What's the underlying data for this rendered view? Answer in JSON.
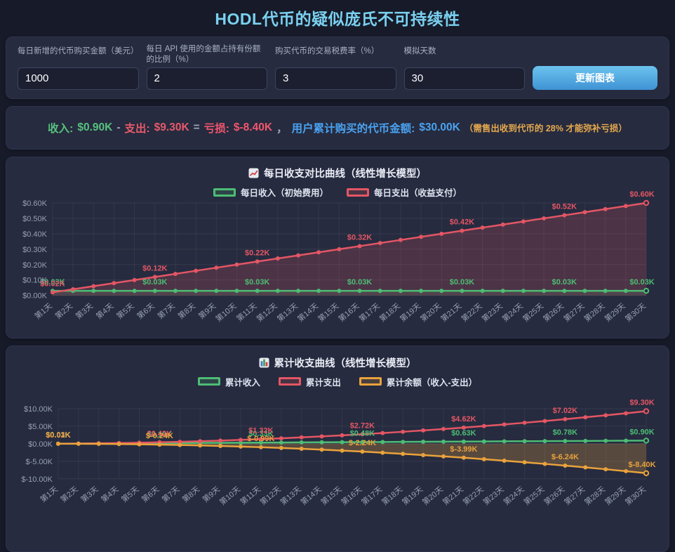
{
  "page": {
    "title": "HODL代币的疑似庞氏不可持续性"
  },
  "controls": {
    "fields": [
      {
        "label": "每日新增的代币购买金额（美元）",
        "value": "1000"
      },
      {
        "label": "每日 API 使用的金额占持有份额的比例（%）",
        "value": "2"
      },
      {
        "label": "购买代币的交易税费率（%）",
        "value": "3"
      },
      {
        "label": "模拟天数",
        "value": "30"
      }
    ],
    "update_button": "更新图表"
  },
  "summary": {
    "income_label": "收入:",
    "income_value": "$0.90K",
    "minus": "-",
    "expense_label": "支出:",
    "expense_value": "$9.30K",
    "equals": "=",
    "loss_label": "亏损:",
    "loss_value": "$-8.40K",
    "comma": "，",
    "total_label": "用户累计购买的代币金额:",
    "total_value": "$30.00K",
    "note": "（需售出收到代币的 28% 才能弥补亏损）",
    "colors": {
      "income": "#57c27d",
      "expense": "#e8596a",
      "loss": "#f2566d",
      "total": "#4aa2f0",
      "note": "#e6a94e"
    }
  },
  "chart_data": [
    {
      "type": "line",
      "title": "每日收支对比曲线（线性增长模型）",
      "icon": "line-chart-icon",
      "grid": true,
      "legend_position": "top",
      "ylim": [
        0,
        0.6
      ],
      "y_ticks": {
        "values": [
          0.6,
          0.5,
          0.4,
          0.3,
          0.2,
          0.1,
          0
        ],
        "labels": [
          "$0.60K",
          "$0.50K",
          "$0.40K",
          "$0.30K",
          "$0.20K",
          "$0.10K",
          "$0.00K"
        ]
      },
      "categories": [
        "第1天",
        "第2天",
        "第3天",
        "第4天",
        "第5天",
        "第6天",
        "第7天",
        "第8天",
        "第9天",
        "第10天",
        "第11天",
        "第12天",
        "第13天",
        "第14天",
        "第15天",
        "第16天",
        "第17天",
        "第18天",
        "第19天",
        "第20天",
        "第21天",
        "第22天",
        "第23天",
        "第24天",
        "第25天",
        "第26天",
        "第27天",
        "第28天",
        "第29天",
        "第30天"
      ],
      "labeled_days": [
        1,
        6,
        11,
        16,
        21,
        26,
        30
      ],
      "series": [
        {
          "name": "每日收入（初始费用）",
          "color": "#4dbd74",
          "fill": "bottom",
          "fill_alpha": 0.15,
          "values": [
            0.03,
            0.03,
            0.03,
            0.03,
            0.03,
            0.03,
            0.03,
            0.03,
            0.03,
            0.03,
            0.03,
            0.03,
            0.03,
            0.03,
            0.03,
            0.03,
            0.03,
            0.03,
            0.03,
            0.03,
            0.03,
            0.03,
            0.03,
            0.03,
            0.03,
            0.03,
            0.03,
            0.03,
            0.03,
            0.03
          ]
        },
        {
          "name": "每日支出（收益支付）",
          "color": "#e45664",
          "fill": "bottom",
          "fill_alpha": 0.2,
          "values": [
            0.02,
            0.04,
            0.06,
            0.08,
            0.1,
            0.12,
            0.14,
            0.16,
            0.18,
            0.2,
            0.22,
            0.24,
            0.26,
            0.28,
            0.3,
            0.32,
            0.34,
            0.36,
            0.38,
            0.4,
            0.42,
            0.44,
            0.46,
            0.48,
            0.5,
            0.52,
            0.54,
            0.56,
            0.58,
            0.6
          ]
        }
      ]
    },
    {
      "type": "line",
      "title": "累计收支曲线（线性增长模型）",
      "icon": "bar-chart-icon",
      "grid": true,
      "legend_position": "top",
      "ylim": [
        -10,
        10
      ],
      "y_ticks": {
        "values": [
          10,
          5,
          0,
          -5,
          -10
        ],
        "labels": [
          "$10.00K",
          "$5.00K",
          "$0.00K",
          "$-5.00K",
          "$-10.00K"
        ]
      },
      "categories": [
        "第1天",
        "第2天",
        "第3天",
        "第4天",
        "第5天",
        "第6天",
        "第7天",
        "第8天",
        "第9天",
        "第10天",
        "第11天",
        "第12天",
        "第13天",
        "第14天",
        "第15天",
        "第16天",
        "第17天",
        "第18天",
        "第19天",
        "第20天",
        "第21天",
        "第22天",
        "第23天",
        "第24天",
        "第25天",
        "第26天",
        "第27天",
        "第28天",
        "第29天",
        "第30天"
      ],
      "labeled_days": [
        1,
        6,
        11,
        16,
        21,
        26,
        30
      ],
      "series": [
        {
          "name": "累计收入",
          "color": "#4dbd74",
          "fill": "none",
          "fill_alpha": 0,
          "values": [
            0.03,
            0.06,
            0.09,
            0.12,
            0.15,
            0.18,
            0.21,
            0.24,
            0.27,
            0.3,
            0.33,
            0.36,
            0.39,
            0.42,
            0.45,
            0.48,
            0.51,
            0.54,
            0.57,
            0.6,
            0.63,
            0.66,
            0.69,
            0.72,
            0.75,
            0.78,
            0.81,
            0.84,
            0.87,
            0.9
          ]
        },
        {
          "name": "累计支出",
          "color": "#e45664",
          "fill": "none",
          "fill_alpha": 0,
          "values": [
            0.02,
            0.06,
            0.12,
            0.2,
            0.3,
            0.42,
            0.56,
            0.72,
            0.9,
            1.1,
            1.32,
            1.56,
            1.82,
            2.1,
            2.4,
            2.72,
            3.06,
            3.42,
            3.8,
            4.2,
            4.62,
            5.06,
            5.52,
            6.0,
            6.5,
            7.02,
            7.56,
            8.12,
            8.7,
            9.3
          ]
        },
        {
          "name": "累计余额（收入-支出）",
          "color": "#eaa23c",
          "fill": "zero",
          "fill_alpha": 0.25,
          "values": [
            0.01,
            0.0,
            -0.03,
            -0.08,
            -0.15,
            -0.24,
            -0.35,
            -0.48,
            -0.63,
            -0.8,
            -0.99,
            -1.2,
            -1.43,
            -1.68,
            -1.95,
            -2.24,
            -2.55,
            -2.88,
            -3.23,
            -3.6,
            -3.99,
            -4.4,
            -4.83,
            -5.28,
            -5.75,
            -6.24,
            -6.75,
            -7.28,
            -7.83,
            -8.4
          ]
        }
      ]
    }
  ]
}
